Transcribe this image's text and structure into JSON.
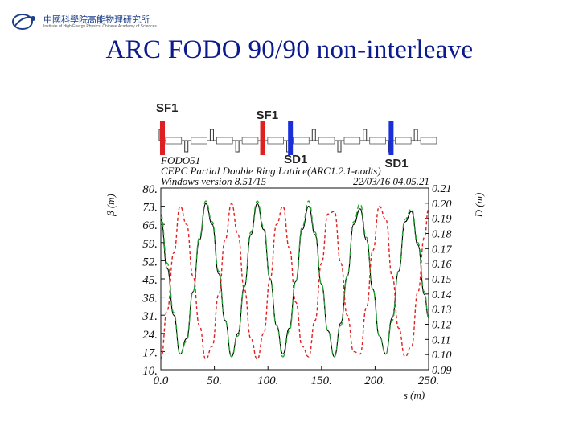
{
  "header": {
    "logo_cn": "中國科學院高能物理研究所",
    "logo_en": "Institute of High Energy Physics, Chinese Academy of Sciences",
    "slide_title": "ARC FODO 90/90  non-interleave"
  },
  "magnets": [
    {
      "label": "SF1",
      "s": 1.5,
      "color": "#e02020"
    },
    {
      "label": "SF1",
      "s": 95,
      "color": "#e02020"
    },
    {
      "label": "SD1",
      "s": 121,
      "color": "#1a2fd8"
    },
    {
      "label": "SD1",
      "s": 215,
      "color": "#1a2fd8"
    }
  ],
  "chart_data": {
    "type": "line",
    "header_lines": [
      "FODO51",
      "CEPC Partial Double Ring Lattice(ARC1.2.1-nodts)",
      "Windows version 8.51/15",
      "22/03/16  04.05.21"
    ],
    "xlabel": "s (m)",
    "ylabel": "β  (m)",
    "y2label": "D  (m)",
    "xlim": [
      0,
      250
    ],
    "ylim": [
      10,
      80
    ],
    "y2lim": [
      0.09,
      0.21
    ],
    "xticks": [
      "0.0",
      "50.",
      "100.",
      "150.",
      "200.",
      "250."
    ],
    "yticks": [
      "10.",
      "17.",
      "24.",
      "31.",
      "38.",
      "45.",
      "52.",
      "59.",
      "66.",
      "73.",
      "80."
    ],
    "y2ticks": [
      "0.09",
      "0.10",
      "0.11",
      "0.12",
      "0.13",
      "0.14",
      "0.15",
      "0.16",
      "0.17",
      "0.18",
      "0.19",
      "0.20",
      "0.21"
    ],
    "series": [
      {
        "axis": "left",
        "color": "#000000",
        "dash": "",
        "x": [
          0,
          6,
          12,
          18,
          24,
          30,
          36,
          42,
          48,
          54,
          60,
          66,
          72,
          78,
          84,
          90,
          96,
          102,
          108,
          114,
          120,
          126,
          132,
          138,
          144,
          150,
          156,
          162,
          168,
          174,
          180,
          186,
          192,
          198,
          204,
          210,
          216,
          222,
          228,
          234,
          240,
          246,
          250
        ],
        "y": [
          68,
          49,
          31,
          16,
          22,
          40,
          60,
          74,
          66,
          47,
          29,
          15,
          24,
          42,
          62,
          74,
          64,
          45,
          27,
          16,
          26,
          44,
          64,
          73,
          62,
          43,
          25,
          15,
          28,
          46,
          66,
          72,
          60,
          41,
          23,
          16,
          30,
          48,
          67,
          71,
          58,
          39,
          30
        ]
      },
      {
        "axis": "left",
        "color": "#21a62f",
        "dash": "6,4",
        "x": [
          0,
          6,
          12,
          18,
          24,
          30,
          36,
          42,
          48,
          54,
          60,
          66,
          72,
          78,
          84,
          90,
          96,
          102,
          108,
          114,
          120,
          126,
          132,
          138,
          144,
          150,
          156,
          162,
          168,
          174,
          180,
          186,
          192,
          198,
          204,
          210,
          216,
          222,
          228,
          234,
          240,
          246,
          250
        ],
        "y": [
          70,
          51,
          32,
          16,
          21,
          40,
          61,
          75,
          67,
          48,
          29,
          15,
          23,
          42,
          63,
          75,
          65,
          45,
          27,
          15,
          25,
          44,
          65,
          75,
          63,
          43,
          25,
          15,
          27,
          46,
          67,
          74,
          61,
          41,
          23,
          16,
          29,
          48,
          68,
          72,
          59,
          40,
          30
        ]
      },
      {
        "axis": "left",
        "color": "#e02020",
        "dash": "4,3",
        "x": [
          0,
          6,
          12,
          18,
          24,
          30,
          36,
          42,
          48,
          54,
          60,
          66,
          72,
          78,
          84,
          90,
          96,
          102,
          108,
          114,
          120,
          126,
          132,
          138,
          144,
          150,
          156,
          162,
          168,
          174,
          180,
          186,
          192,
          198,
          204,
          210,
          216,
          222,
          228,
          234,
          240,
          246,
          250
        ],
        "y": [
          14,
          33,
          55,
          73,
          66,
          46,
          27,
          14,
          19,
          39,
          60,
          74,
          62,
          41,
          22,
          14,
          24,
          45,
          66,
          73,
          57,
          36,
          19,
          15,
          29,
          51,
          70,
          71,
          51,
          31,
          17,
          16,
          34,
          56,
          73,
          68,
          46,
          26,
          15,
          19,
          40,
          61,
          72
        ]
      }
    ]
  }
}
